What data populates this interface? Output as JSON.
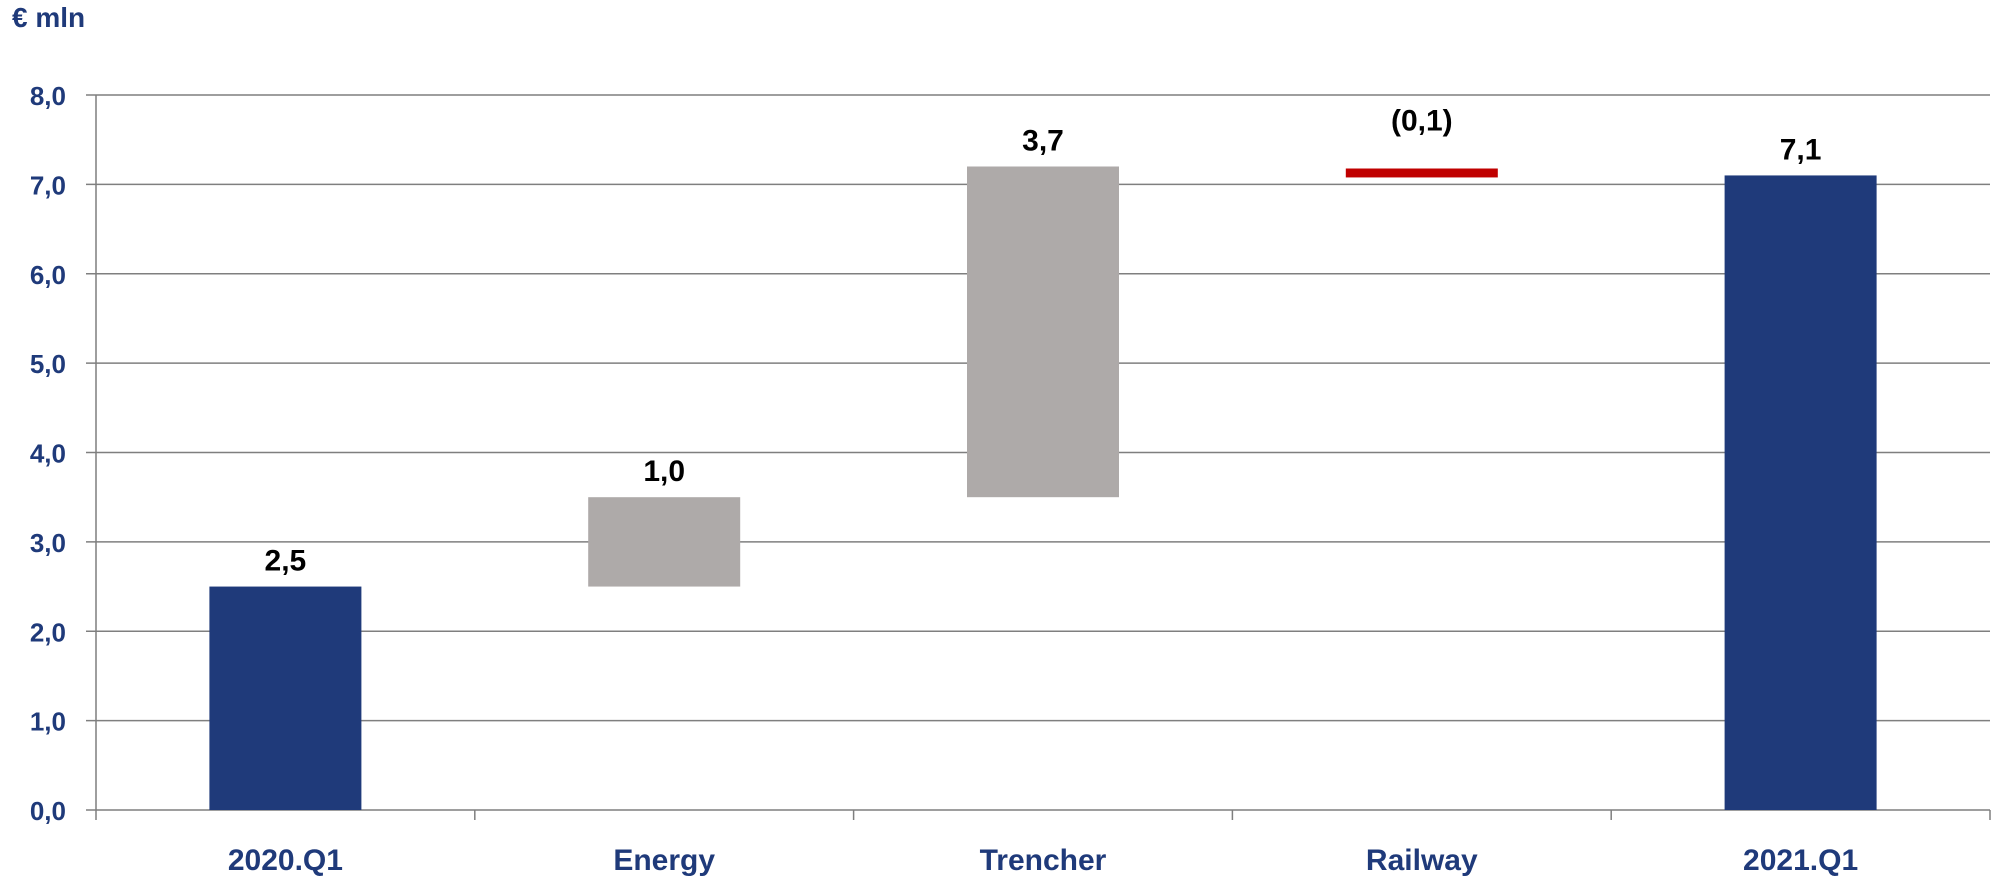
{
  "chart_data": {
    "type": "waterfall",
    "unit": "€ mln",
    "ylim": [
      0,
      8
    ],
    "y_ticks": [
      "0,0",
      "1,0",
      "2,0",
      "3,0",
      "4,0",
      "5,0",
      "6,0",
      "7,0",
      "8,0"
    ],
    "grid": true,
    "categories": [
      "2020.Q1",
      "Energy",
      "Trencher",
      "Railway",
      "2021.Q1"
    ],
    "bars": [
      {
        "category": "2020.Q1",
        "kind": "total",
        "start": 0,
        "end": 2.5,
        "label": "2,5"
      },
      {
        "category": "Energy",
        "kind": "increase",
        "start": 2.5,
        "end": 3.5,
        "label": "1,0"
      },
      {
        "category": "Trencher",
        "kind": "increase",
        "start": 3.5,
        "end": 7.2,
        "label": "3,7"
      },
      {
        "category": "Railway",
        "kind": "decrease",
        "start": 7.2,
        "end": 7.1,
        "label": "(0,1)"
      },
      {
        "category": "2021.Q1",
        "kind": "total",
        "start": 0,
        "end": 7.1,
        "label": "7,1"
      }
    ],
    "colors": {
      "total": "#1f3a7a",
      "increase": "#aeaaa9",
      "decrease": "#c00000",
      "axis_text": "#1f3a7a",
      "grid": "#7f7f7f",
      "data_label": "#000000"
    }
  }
}
